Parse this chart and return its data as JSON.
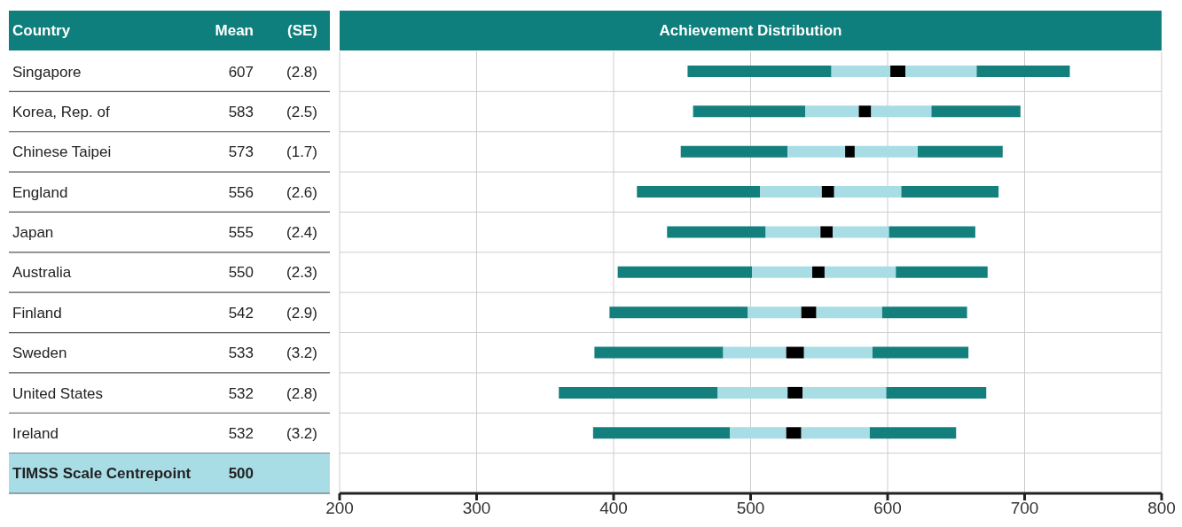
{
  "chart_data": {
    "type": "bar",
    "orientation": "horizontal",
    "title": "Achievement Distribution",
    "annotations": [
      "Country",
      "Mean",
      "(SE)",
      "607",
      "(2.8)",
      "583",
      "(2.5)",
      "573",
      "(1.7)",
      "556",
      "(2.6)",
      "555",
      "(2.4)",
      "550",
      "(2.3)",
      "542",
      "(2.9)",
      "533",
      "(3.2)",
      "532",
      "(2.8)",
      "532",
      "(3.2)",
      "500"
    ],
    "categories": [
      "Singapore",
      "Korea, Rep. of",
      "Chinese Taipei",
      "England",
      "Japan",
      "Australia",
      "Finland",
      "Sweden",
      "United States",
      "Ireland",
      "TIMSS Scale Centrepoint"
    ],
    "series": [
      {
        "color": "#14807e",
        "base": [
          454,
          458,
          449,
          417,
          439,
          403,
          397,
          386,
          360,
          385,
          null
        ],
        "values": [
          105,
          82,
          78,
          90,
          72,
          98,
          101,
          94,
          116,
          100,
          null
        ]
      },
      {
        "color": "#a8dde6",
        "base": [
          559,
          540,
          527,
          507,
          511,
          501,
          498,
          480,
          476,
          485,
          null
        ],
        "values": [
          43,
          39,
          42,
          45,
          40,
          44,
          39,
          46,
          51,
          41,
          null
        ]
      },
      {
        "color": "#000000",
        "base": [
          602,
          579,
          569,
          552,
          551,
          545,
          537,
          526,
          527,
          526,
          null
        ],
        "values": [
          11,
          9,
          7,
          9,
          9,
          9,
          11,
          13,
          11,
          11,
          null
        ]
      },
      {
        "color": "#a8dde6",
        "base": [
          613,
          588,
          576,
          561,
          560,
          554,
          548,
          539,
          538,
          537,
          null
        ],
        "values": [
          52,
          44,
          46,
          49,
          41,
          52,
          48,
          50,
          61,
          50,
          null
        ]
      },
      {
        "color": "#14807e",
        "base": [
          665,
          632,
          622,
          610,
          601,
          606,
          596,
          589,
          599,
          587,
          null
        ],
        "values": [
          68,
          65,
          62,
          71,
          63,
          67,
          62,
          70,
          73,
          63,
          null
        ]
      }
    ],
    "xlim": [
      200,
      800
    ],
    "xticks": [
      200,
      300,
      400,
      500,
      600,
      700,
      800
    ],
    "grid": true
  }
}
